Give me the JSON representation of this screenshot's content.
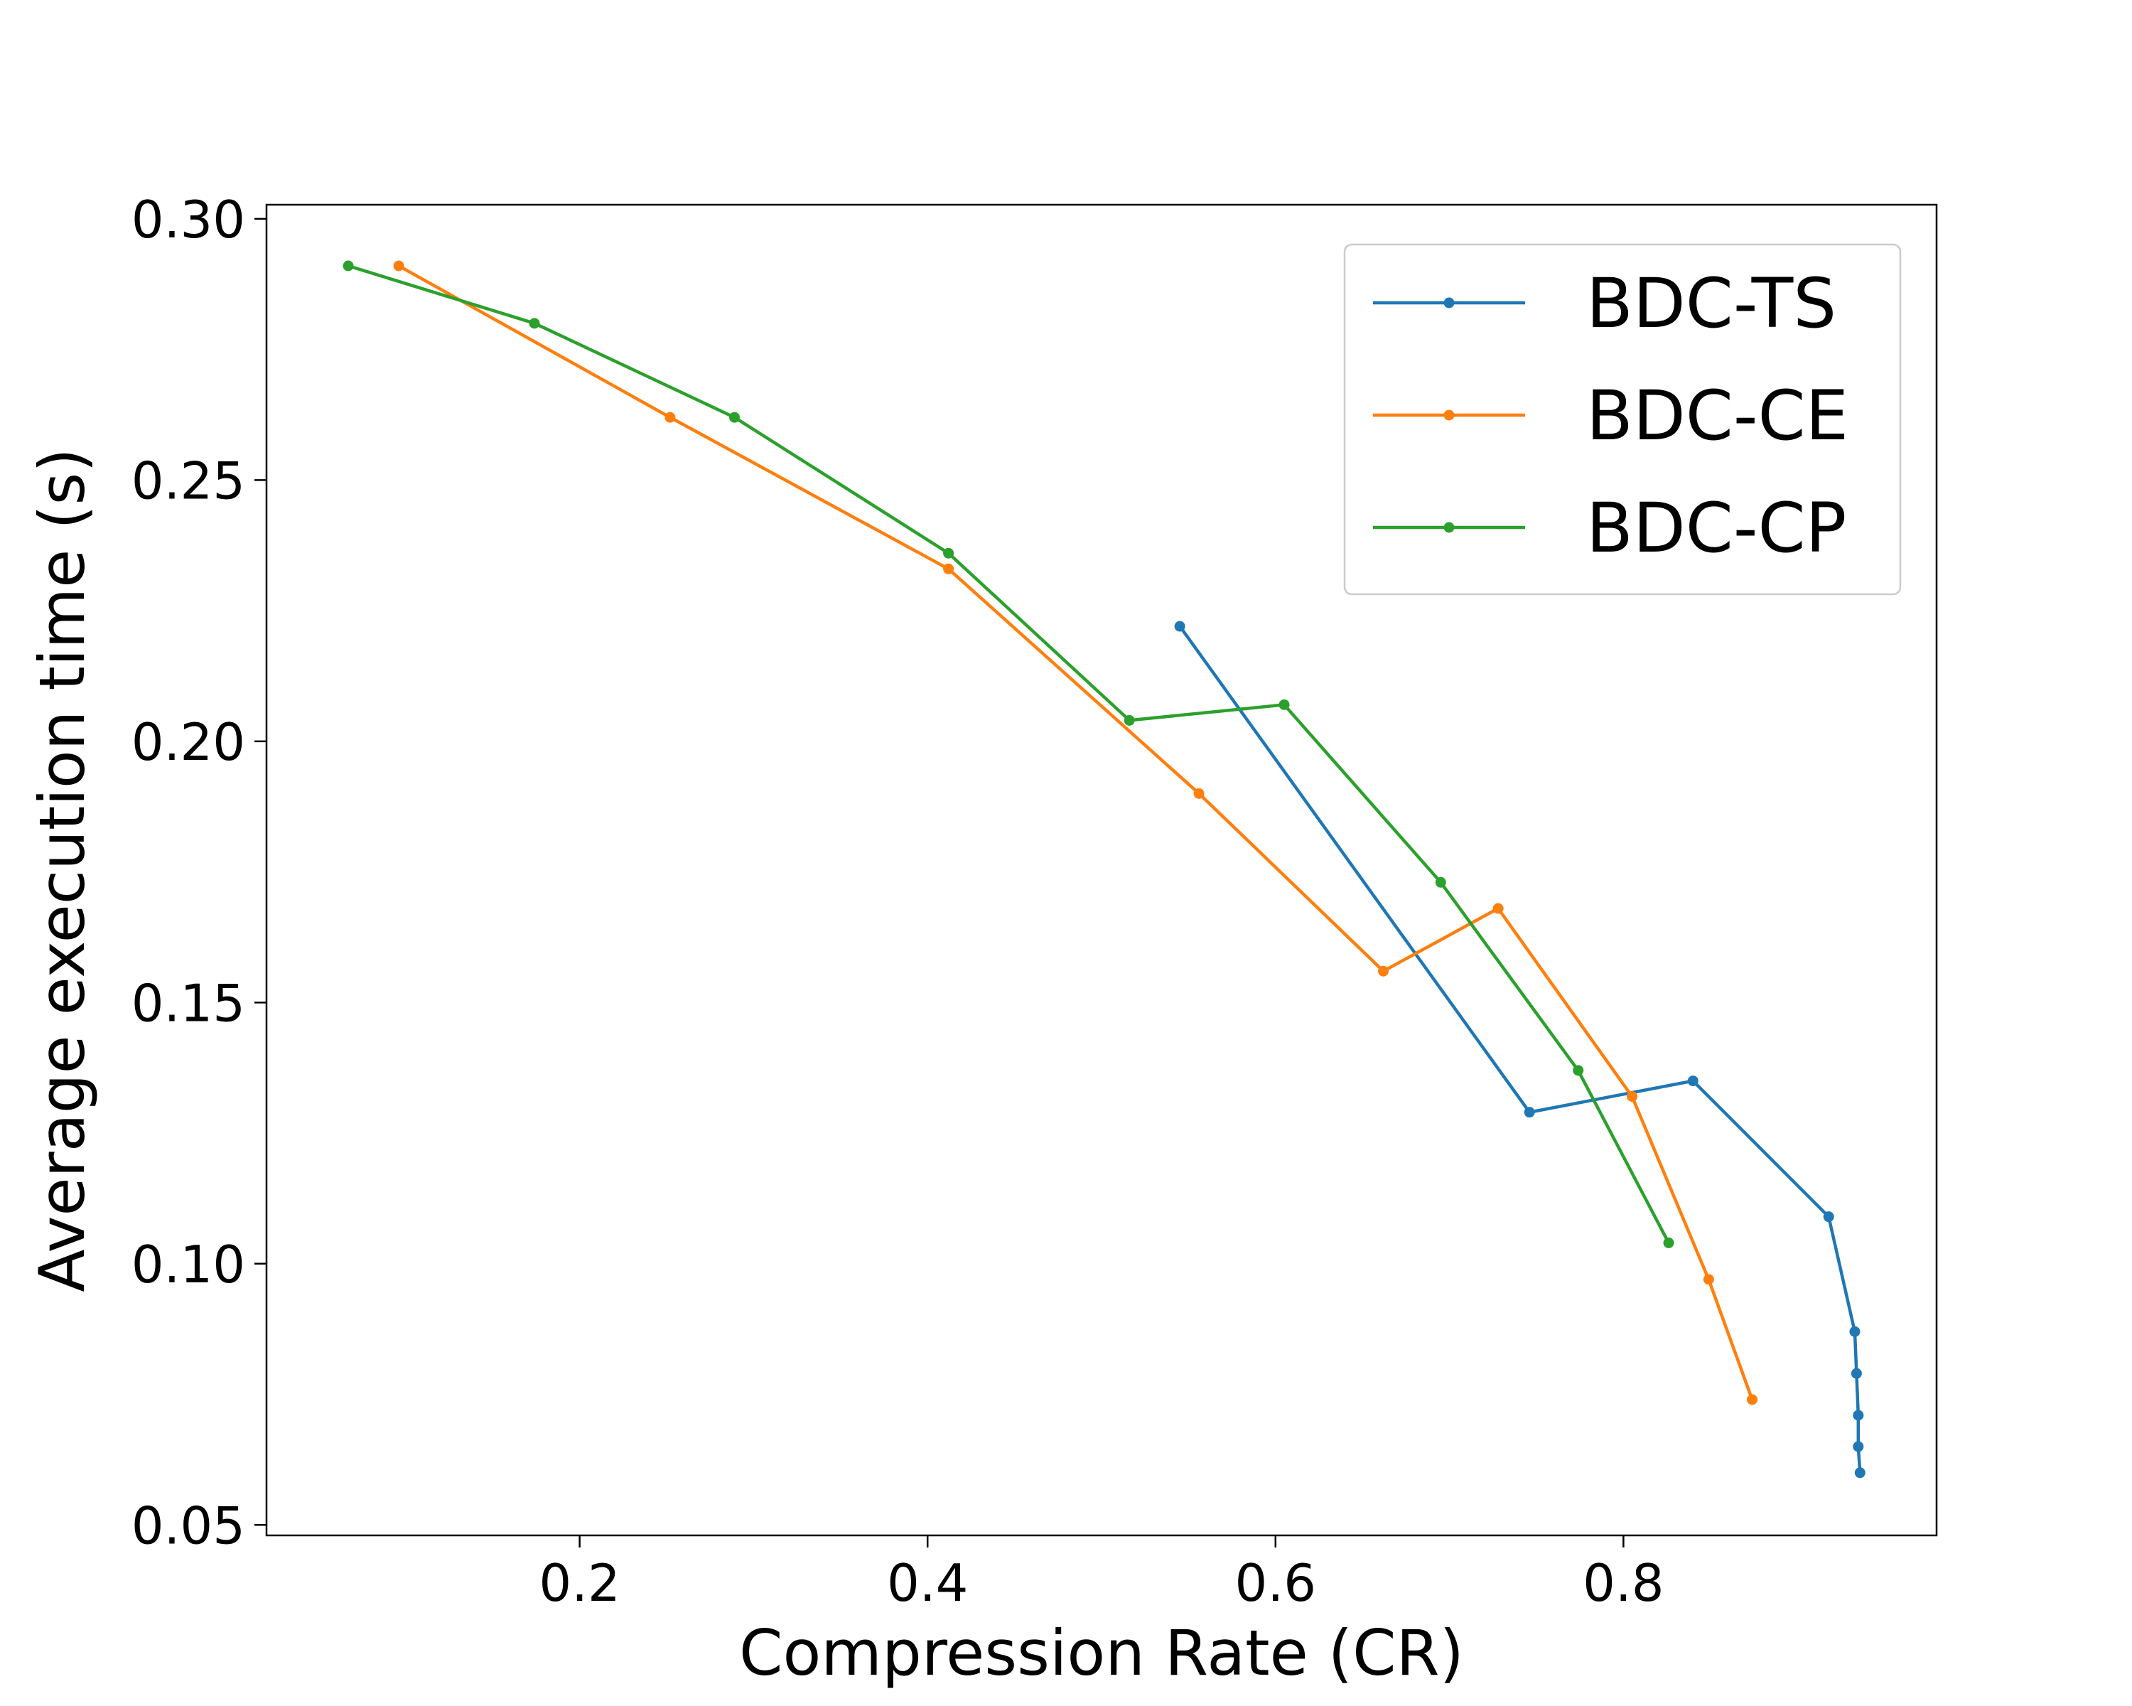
{
  "chart_data": {
    "type": "line",
    "title": "",
    "xlabel": "Compression Rate (CR)",
    "ylabel": "Average execution time (s)",
    "xlim": [
      0.02,
      0.98
    ],
    "ylim": [
      0.048,
      0.3027
    ],
    "x_ticks": [
      0.2,
      0.4,
      0.6,
      0.8
    ],
    "x_tick_labels": [
      "0.2",
      "0.4",
      "0.6",
      "0.8"
    ],
    "y_ticks": [
      0.05,
      0.1,
      0.15,
      0.2,
      0.25,
      0.3
    ],
    "y_tick_labels": [
      "0.05",
      "0.10",
      "0.15",
      "0.20",
      "0.25",
      "0.30"
    ],
    "grid": false,
    "legend_position": "top-right",
    "series": [
      {
        "name": "BDC-TS",
        "color": "#1f77b4",
        "x": [
          0.545,
          0.746,
          0.84,
          0.918,
          0.933,
          0.934,
          0.935,
          0.935,
          0.936
        ],
        "y": [
          0.222,
          0.129,
          0.135,
          0.109,
          0.087,
          0.079,
          0.071,
          0.065,
          0.06
        ]
      },
      {
        "name": "BDC-CE",
        "color": "#ff7f0e",
        "x": [
          0.096,
          0.252,
          0.412,
          0.556,
          0.662,
          0.728,
          0.805,
          0.849,
          0.874
        ],
        "y": [
          0.291,
          0.262,
          0.233,
          0.19,
          0.156,
          0.168,
          0.132,
          0.097,
          0.074
        ]
      },
      {
        "name": "BDC-CP",
        "color": "#2ca02c",
        "x": [
          0.067,
          0.174,
          0.289,
          0.412,
          0.516,
          0.605,
          0.695,
          0.774,
          0.826
        ],
        "y": [
          0.291,
          0.28,
          0.262,
          0.236,
          0.204,
          0.207,
          0.173,
          0.137,
          0.104
        ]
      }
    ]
  }
}
